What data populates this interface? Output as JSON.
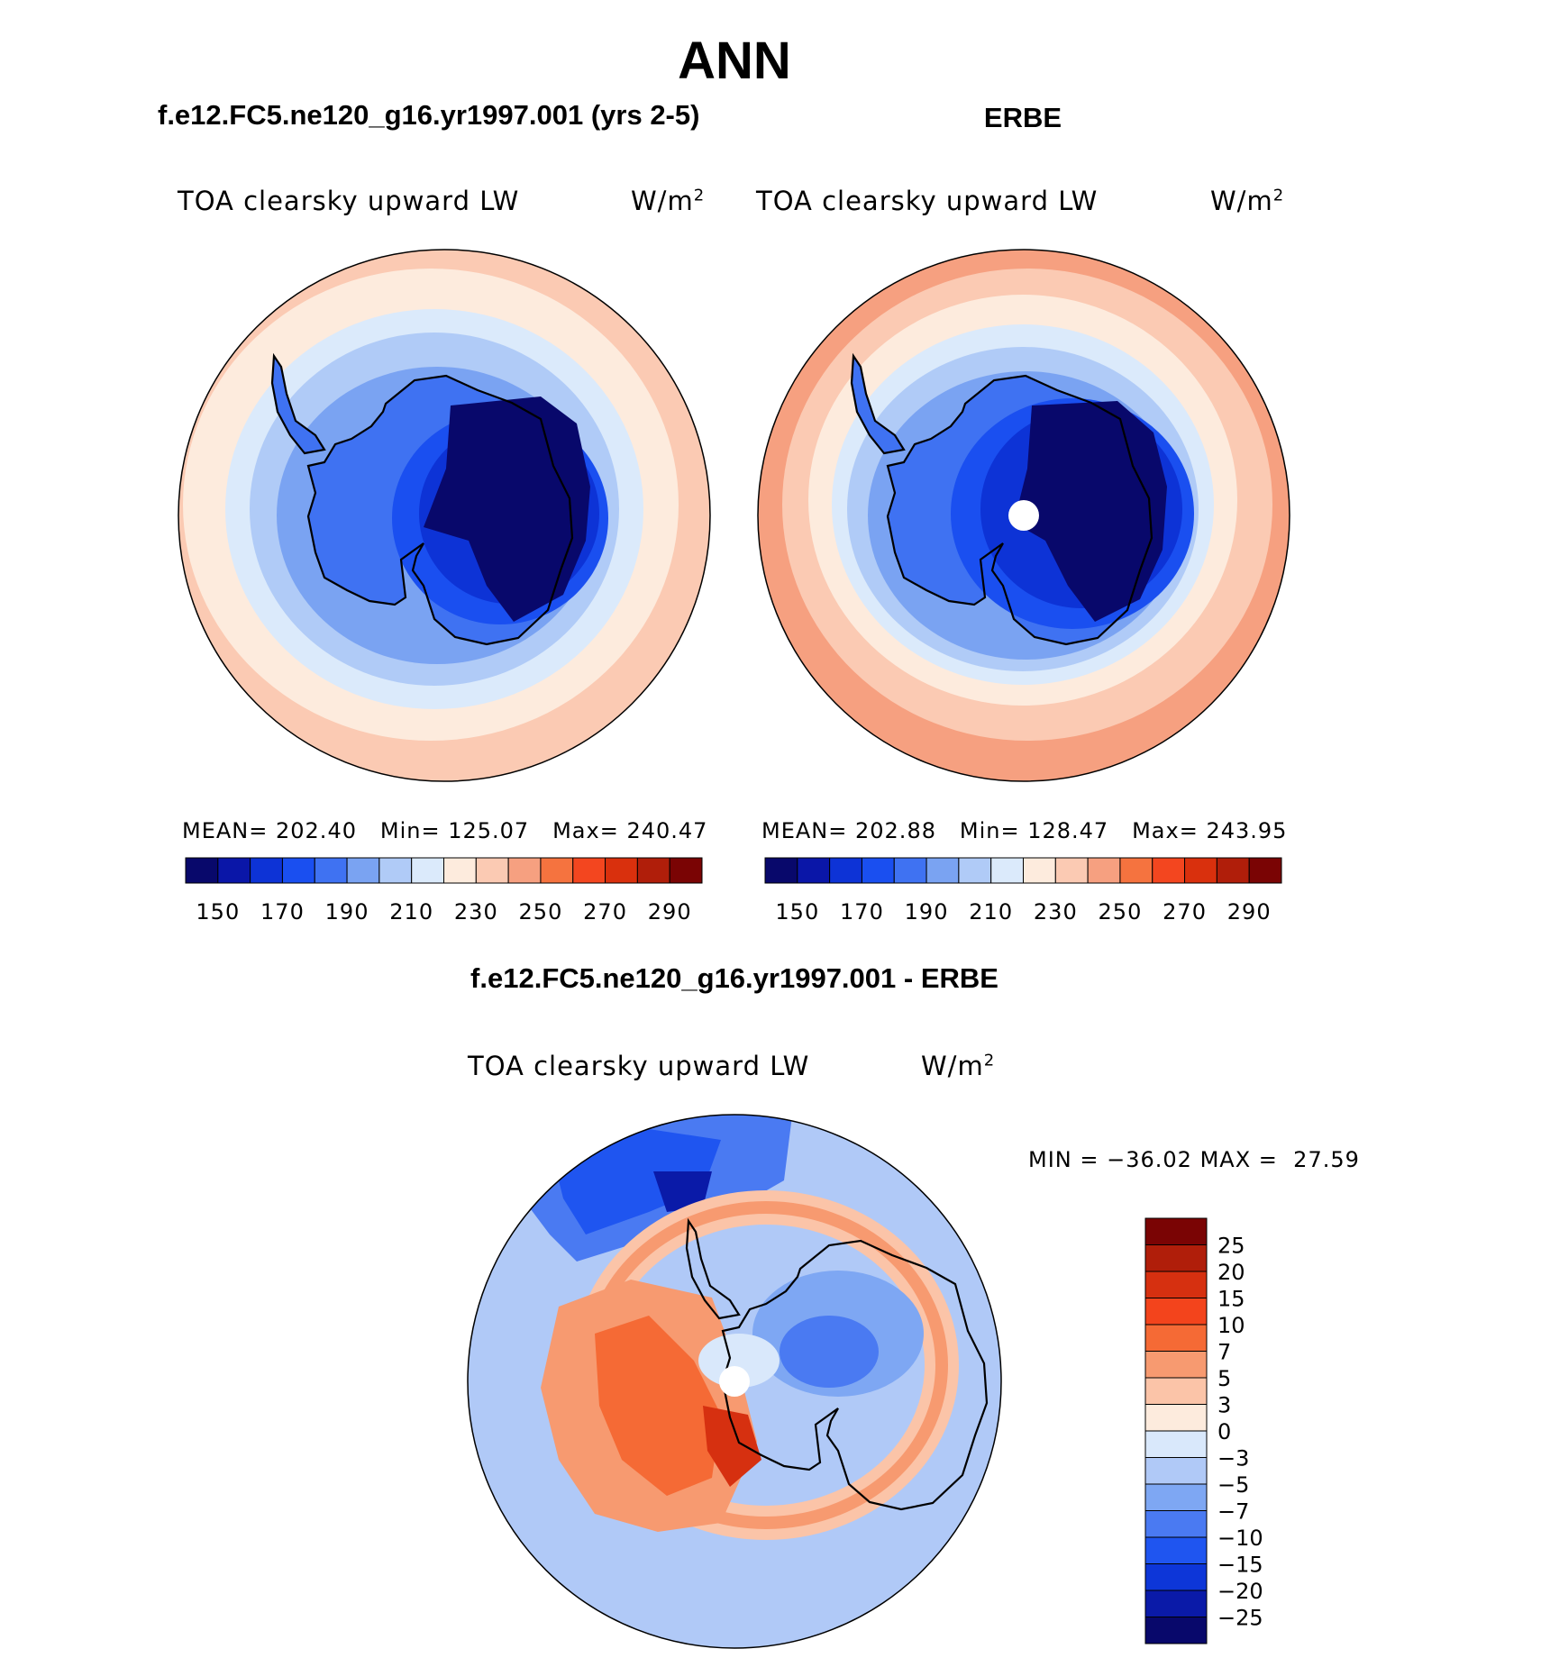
{
  "figure": {
    "title": "ANN",
    "colors": {
      "abs_scale": [
        "#08086b",
        "#0a16a8",
        "#0d33d6",
        "#1a4ff0",
        "#3f72f2",
        "#7aa3f2",
        "#b0cbf7",
        "#dbeafb",
        "#fdebdd",
        "#fbcab3",
        "#f6a080",
        "#f5733f",
        "#f3461f",
        "#d9300d",
        "#b01e0a",
        "#7a0404"
      ],
      "diff_scale": [
        "#08086b",
        "#0a1aa8",
        "#0d36d8",
        "#1f55f0",
        "#4a7af2",
        "#7ea7f3",
        "#b0c9f7",
        "#d9e8fb",
        "#fdebdd",
        "#fbc4a8",
        "#f79a70",
        "#f56a35",
        "#f3441c",
        "#d63010",
        "#b01e0a",
        "#7a0404"
      ],
      "coastline": "#000000"
    }
  },
  "panels": [
    {
      "title": "f.e12.FC5.ne120_g16.yr1997.001 (yrs 2-5)",
      "variable": "TOA clearsky upward LW",
      "units": "W/m",
      "units_exp": "2",
      "stats": {
        "mean_label": "MEAN=",
        "mean": "202.40",
        "min_label": "Min=",
        "min": "125.07",
        "max_label": "Max=",
        "max": "240.47"
      },
      "colorbar_ticks": [
        "150",
        "170",
        "190",
        "210",
        "230",
        "250",
        "270",
        "290"
      ]
    },
    {
      "title": "ERBE",
      "variable": "TOA clearsky upward LW",
      "units": "W/m",
      "units_exp": "2",
      "stats": {
        "mean_label": "MEAN=",
        "mean": "202.88",
        "min_label": "Min=",
        "min": "128.47",
        "max_label": "Max=",
        "max": "243.95"
      },
      "colorbar_ticks": [
        "150",
        "170",
        "190",
        "210",
        "230",
        "250",
        "270",
        "290"
      ]
    }
  ],
  "difference": {
    "title": "f.e12.FC5.ne120_g16.yr1997.001 - ERBE",
    "variable": "TOA clearsky upward LW",
    "units": "W/m",
    "units_exp": "2",
    "min_label": "MIN =",
    "min": "−36.02",
    "max_label": "MAX =",
    "max": "27.59",
    "colorbar_ticks": [
      "25",
      "20",
      "15",
      "10",
      "7",
      "5",
      "3",
      "0",
      "−3",
      "−5",
      "−7",
      "−10",
      "−15",
      "−20",
      "−25"
    ]
  }
}
